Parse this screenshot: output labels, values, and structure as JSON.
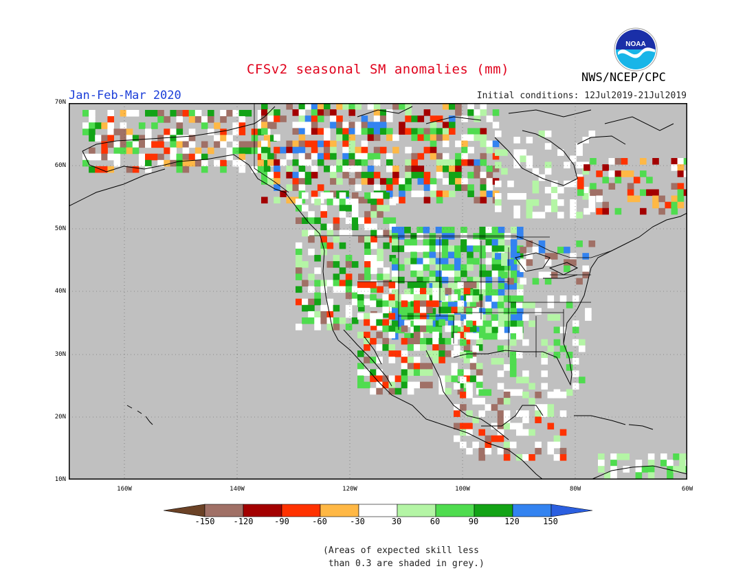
{
  "title": "CFSv2 seasonal SM anomalies (mm)",
  "period": "Jan-Feb-Mar 2020",
  "initial_conditions": "Initial conditions: 12Jul2019-21Jul2019",
  "agency": "NWS/NCEP/CPC",
  "logo_text": "NOAA",
  "lat_labels": [
    "70N",
    "60N",
    "50N",
    "40N",
    "30N",
    "20N",
    "10N"
  ],
  "lon_labels": [
    "160W",
    "140W",
    "120W",
    "100W",
    "80W",
    "60W"
  ],
  "colorbar": {
    "labels": [
      "-150",
      "-120",
      "-90",
      "-60",
      "-30",
      "30",
      "60",
      "90",
      "120",
      "150"
    ],
    "colors": [
      "#6b4226",
      "#a07066",
      "#a30000",
      "#ff3200",
      "#ffb845",
      "#ffffff",
      "#b4f5a5",
      "#4fdc4f",
      "#13a316",
      "#3383f0",
      "#2b5fe0"
    ]
  },
  "note": "(Areas of expected skill less\n than 0.3 are shaded in grey.)",
  "map_colors": {
    "land_low_skill": "#c0c0c0",
    "ocean": "#c0c0c0",
    "coastline": "#000000"
  }
}
